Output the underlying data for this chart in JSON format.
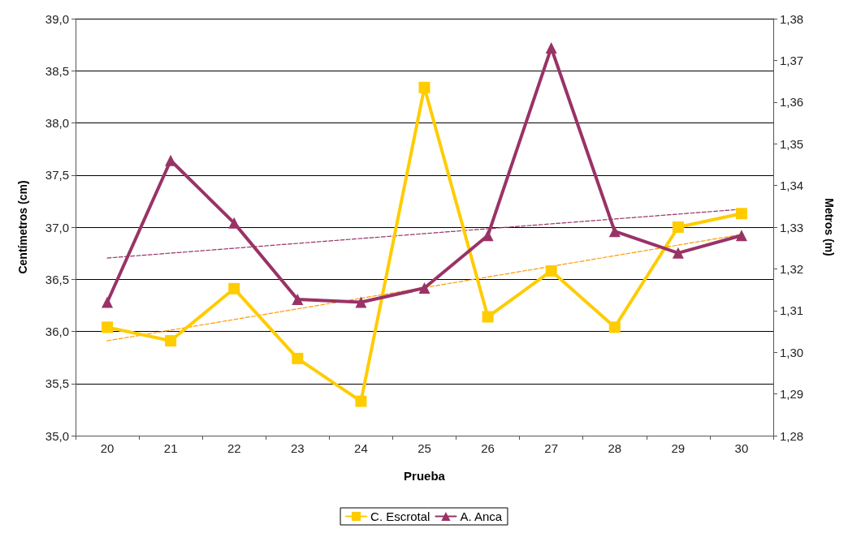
{
  "chart_data": {
    "type": "line",
    "xlabel": "Prueba",
    "ylabel": "Centímetros (cm)",
    "y2label": "Metros (m)",
    "categories": [
      "20",
      "21",
      "22",
      "23",
      "24",
      "25",
      "26",
      "27",
      "28",
      "29",
      "30"
    ],
    "series": [
      {
        "name": "C. Escrotal",
        "color": "#ffcc00",
        "marker": "square",
        "values": [
          36.04,
          35.91,
          36.41,
          35.74,
          35.33,
          38.34,
          36.14,
          36.58,
          36.04,
          37.0,
          37.13
        ]
      },
      {
        "name": "A. Anca",
        "color": "#993366",
        "marker": "triangle",
        "axis": "y2",
        "values": [
          1.312,
          1.346,
          1.331,
          1.3127,
          1.312,
          1.3154,
          1.328,
          1.373,
          1.329,
          1.3238,
          1.328
        ]
      },
      {
        "type": "line",
        "color": "#ff9900",
        "marker": "none",
        "line_style": "dashed",
        "x": [
          "20",
          "30"
        ],
        "values": [
          35.91,
          36.93
        ]
      },
      {
        "type": "line",
        "color": "#993366",
        "marker": "none",
        "line_style": "dashed",
        "axis": "y2",
        "x": [
          "20",
          "30"
        ],
        "values": [
          1.3226,
          1.3343
        ]
      }
    ],
    "ylim": [
      35,
      39
    ],
    "yticks": [
      {
        "value": 35,
        "label": "35,0"
      },
      {
        "value": 35.5,
        "label": "35,5"
      },
      {
        "value": 36,
        "label": "36,0"
      },
      {
        "value": 36.5,
        "label": "36,5"
      },
      {
        "value": 37,
        "label": "37,0"
      },
      {
        "value": 37.5,
        "label": "37,5"
      },
      {
        "value": 38,
        "label": "38,0"
      },
      {
        "value": 38.5,
        "label": "38,5"
      },
      {
        "value": 39,
        "label": "39,0"
      }
    ],
    "y2lim": [
      1.28,
      1.38
    ],
    "y2ticks": [
      {
        "value": 1.28,
        "label": "1,28"
      },
      {
        "value": 1.29,
        "label": "1,29"
      },
      {
        "value": 1.3,
        "label": "1,30"
      },
      {
        "value": 1.31,
        "label": "1,31"
      },
      {
        "value": 1.32,
        "label": "1,32"
      },
      {
        "value": 1.33,
        "label": "1,33"
      },
      {
        "value": 1.34,
        "label": "1,34"
      },
      {
        "value": 1.35,
        "label": "1,35"
      },
      {
        "value": 1.36,
        "label": "1,36"
      },
      {
        "value": 1.37,
        "label": "1,37"
      },
      {
        "value": 1.38,
        "label": "1,38"
      }
    ],
    "grid": "y",
    "legend": "bottom"
  }
}
